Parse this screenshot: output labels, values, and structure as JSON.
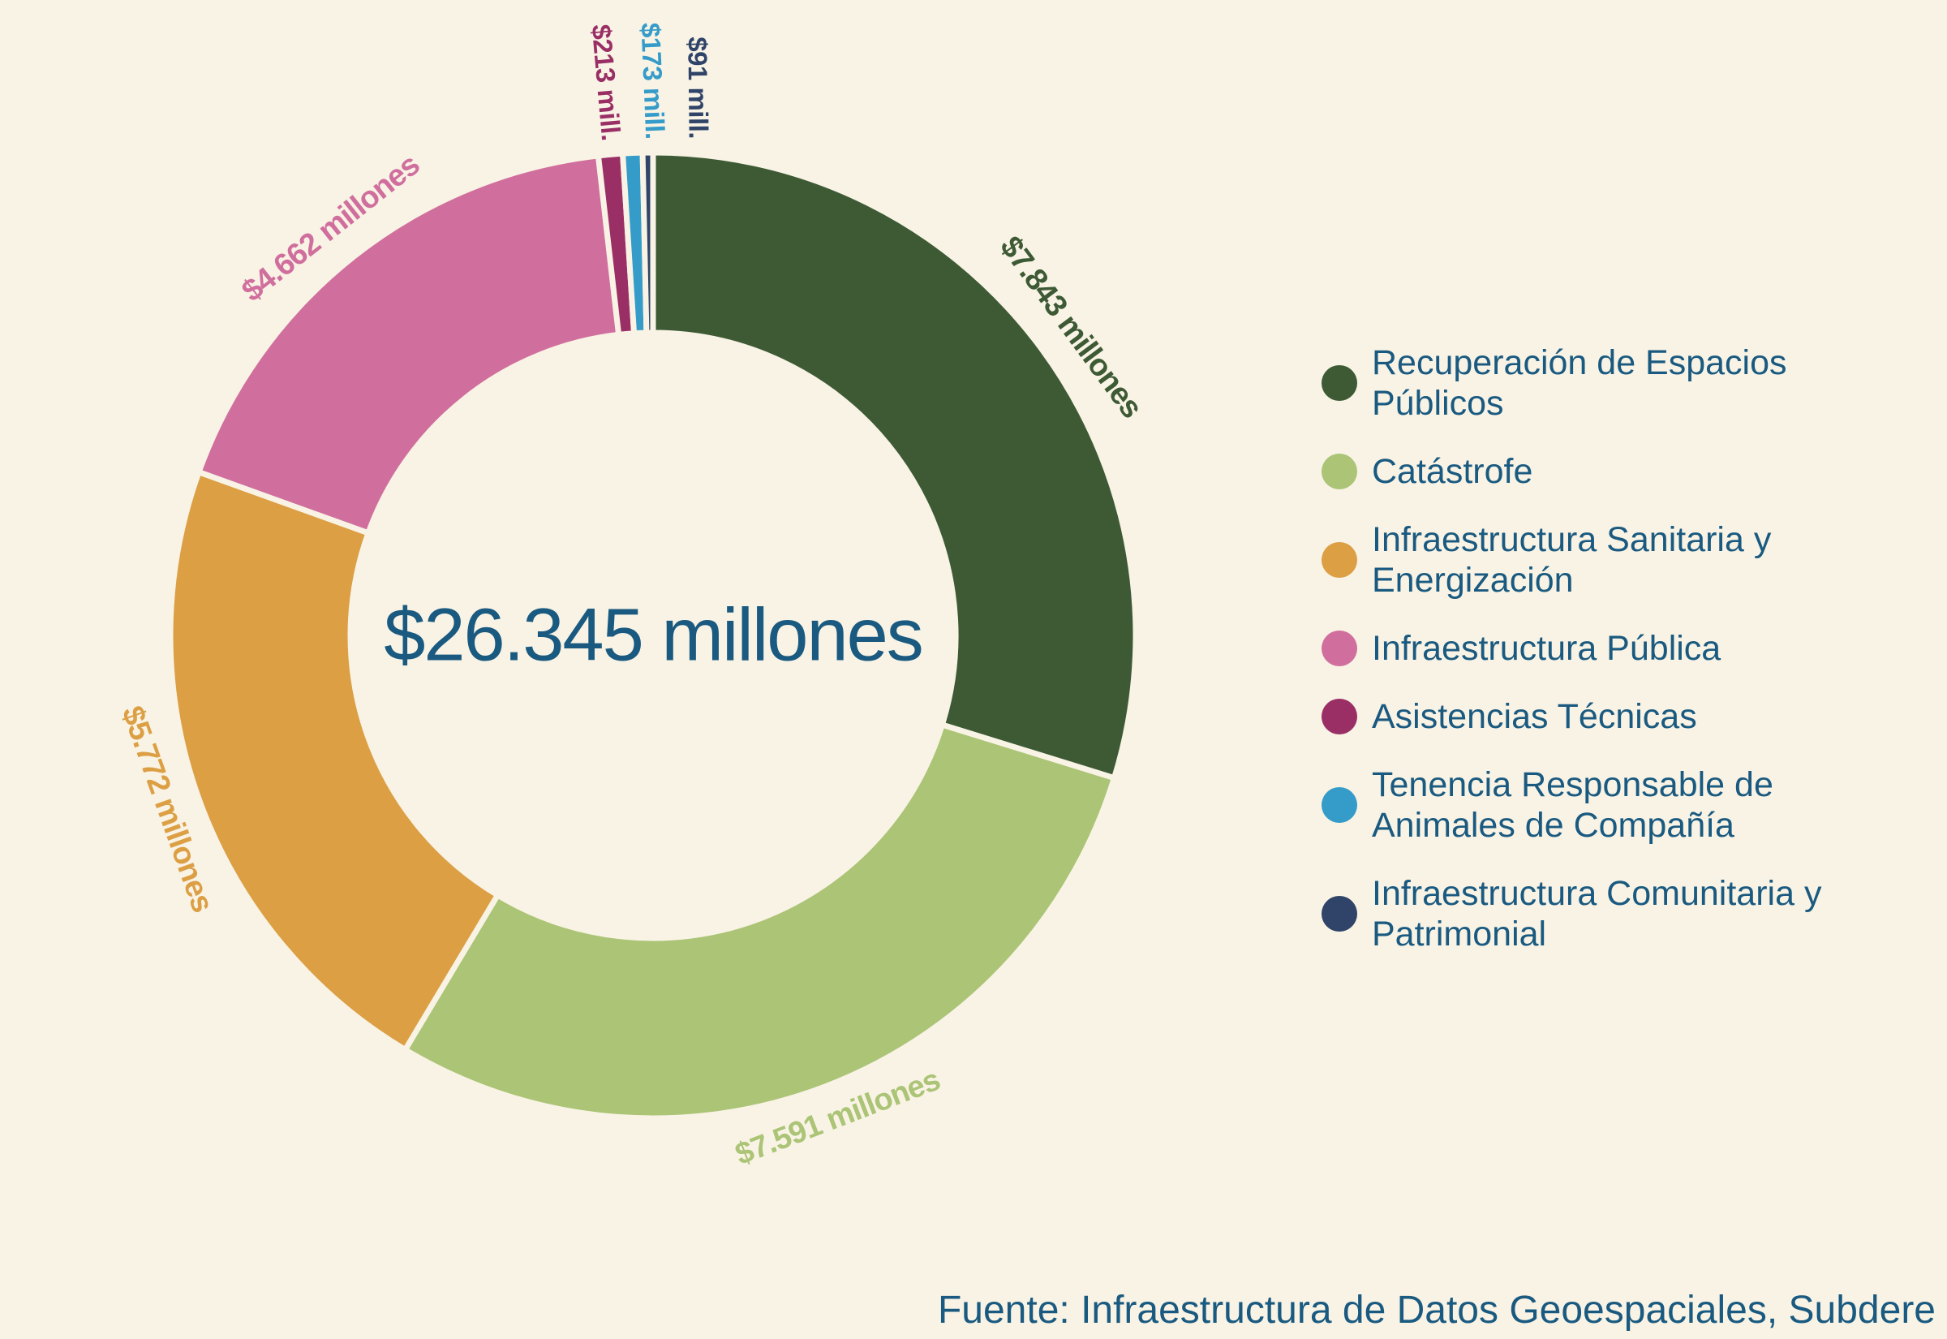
{
  "page": {
    "background_color": "#F9F3E5",
    "text_color": "#1A5A80"
  },
  "footer": {
    "text": "Fuente: Infraestructura de Datos Geoespaciales, Subdere"
  },
  "chart_data": {
    "type": "pie",
    "subtype": "donut",
    "center_total_label": "$26.345 millones",
    "total_value": 26345,
    "direction": "clockwise",
    "start_angle_deg": 0,
    "donut_hole_ratio": 0.63,
    "legend_position": "right",
    "segments": [
      {
        "label": "Recuperación de Espacios Públicos",
        "label_lines": "Recuperación de Espacios\nPúblicos",
        "value": 7843,
        "value_label": "$7.843 millones",
        "color": "#3D5A35"
      },
      {
        "label": "Catástrofe",
        "label_lines": "Catástrofe",
        "value": 7591,
        "value_label": "$7.591 millones",
        "color": "#ABC476"
      },
      {
        "label": "Infraestructura Sanitaria y Energización",
        "label_lines": "Infraestructura Sanitaria y\nEnergización",
        "value": 5772,
        "value_label": "$5.772 millones",
        "color": "#DC9F44"
      },
      {
        "label": "Infraestructura Pública",
        "label_lines": "Infraestructura Pública",
        "value": 4662,
        "value_label": "$4.662 millones",
        "color": "#D06F9D"
      },
      {
        "label": "Asistencias Técnicas",
        "label_lines": "Asistencias Técnicas",
        "value": 213,
        "value_label": "$213 mill.",
        "color": "#9A2F66"
      },
      {
        "label": "Tenencia Responsable de Animales de Compañía",
        "label_lines": "Tenencia Responsable de\nAnimales de Compañía",
        "value": 173,
        "value_label": "$173 mill.",
        "color": "#359CC9"
      },
      {
        "label": "Infraestructura Comunitaria y Patrimonial",
        "label_lines": "Infraestructura Comunitaria y\nPatrimonial",
        "value": 91,
        "value_label": "$91 mill.",
        "color": "#2F4468"
      }
    ]
  }
}
